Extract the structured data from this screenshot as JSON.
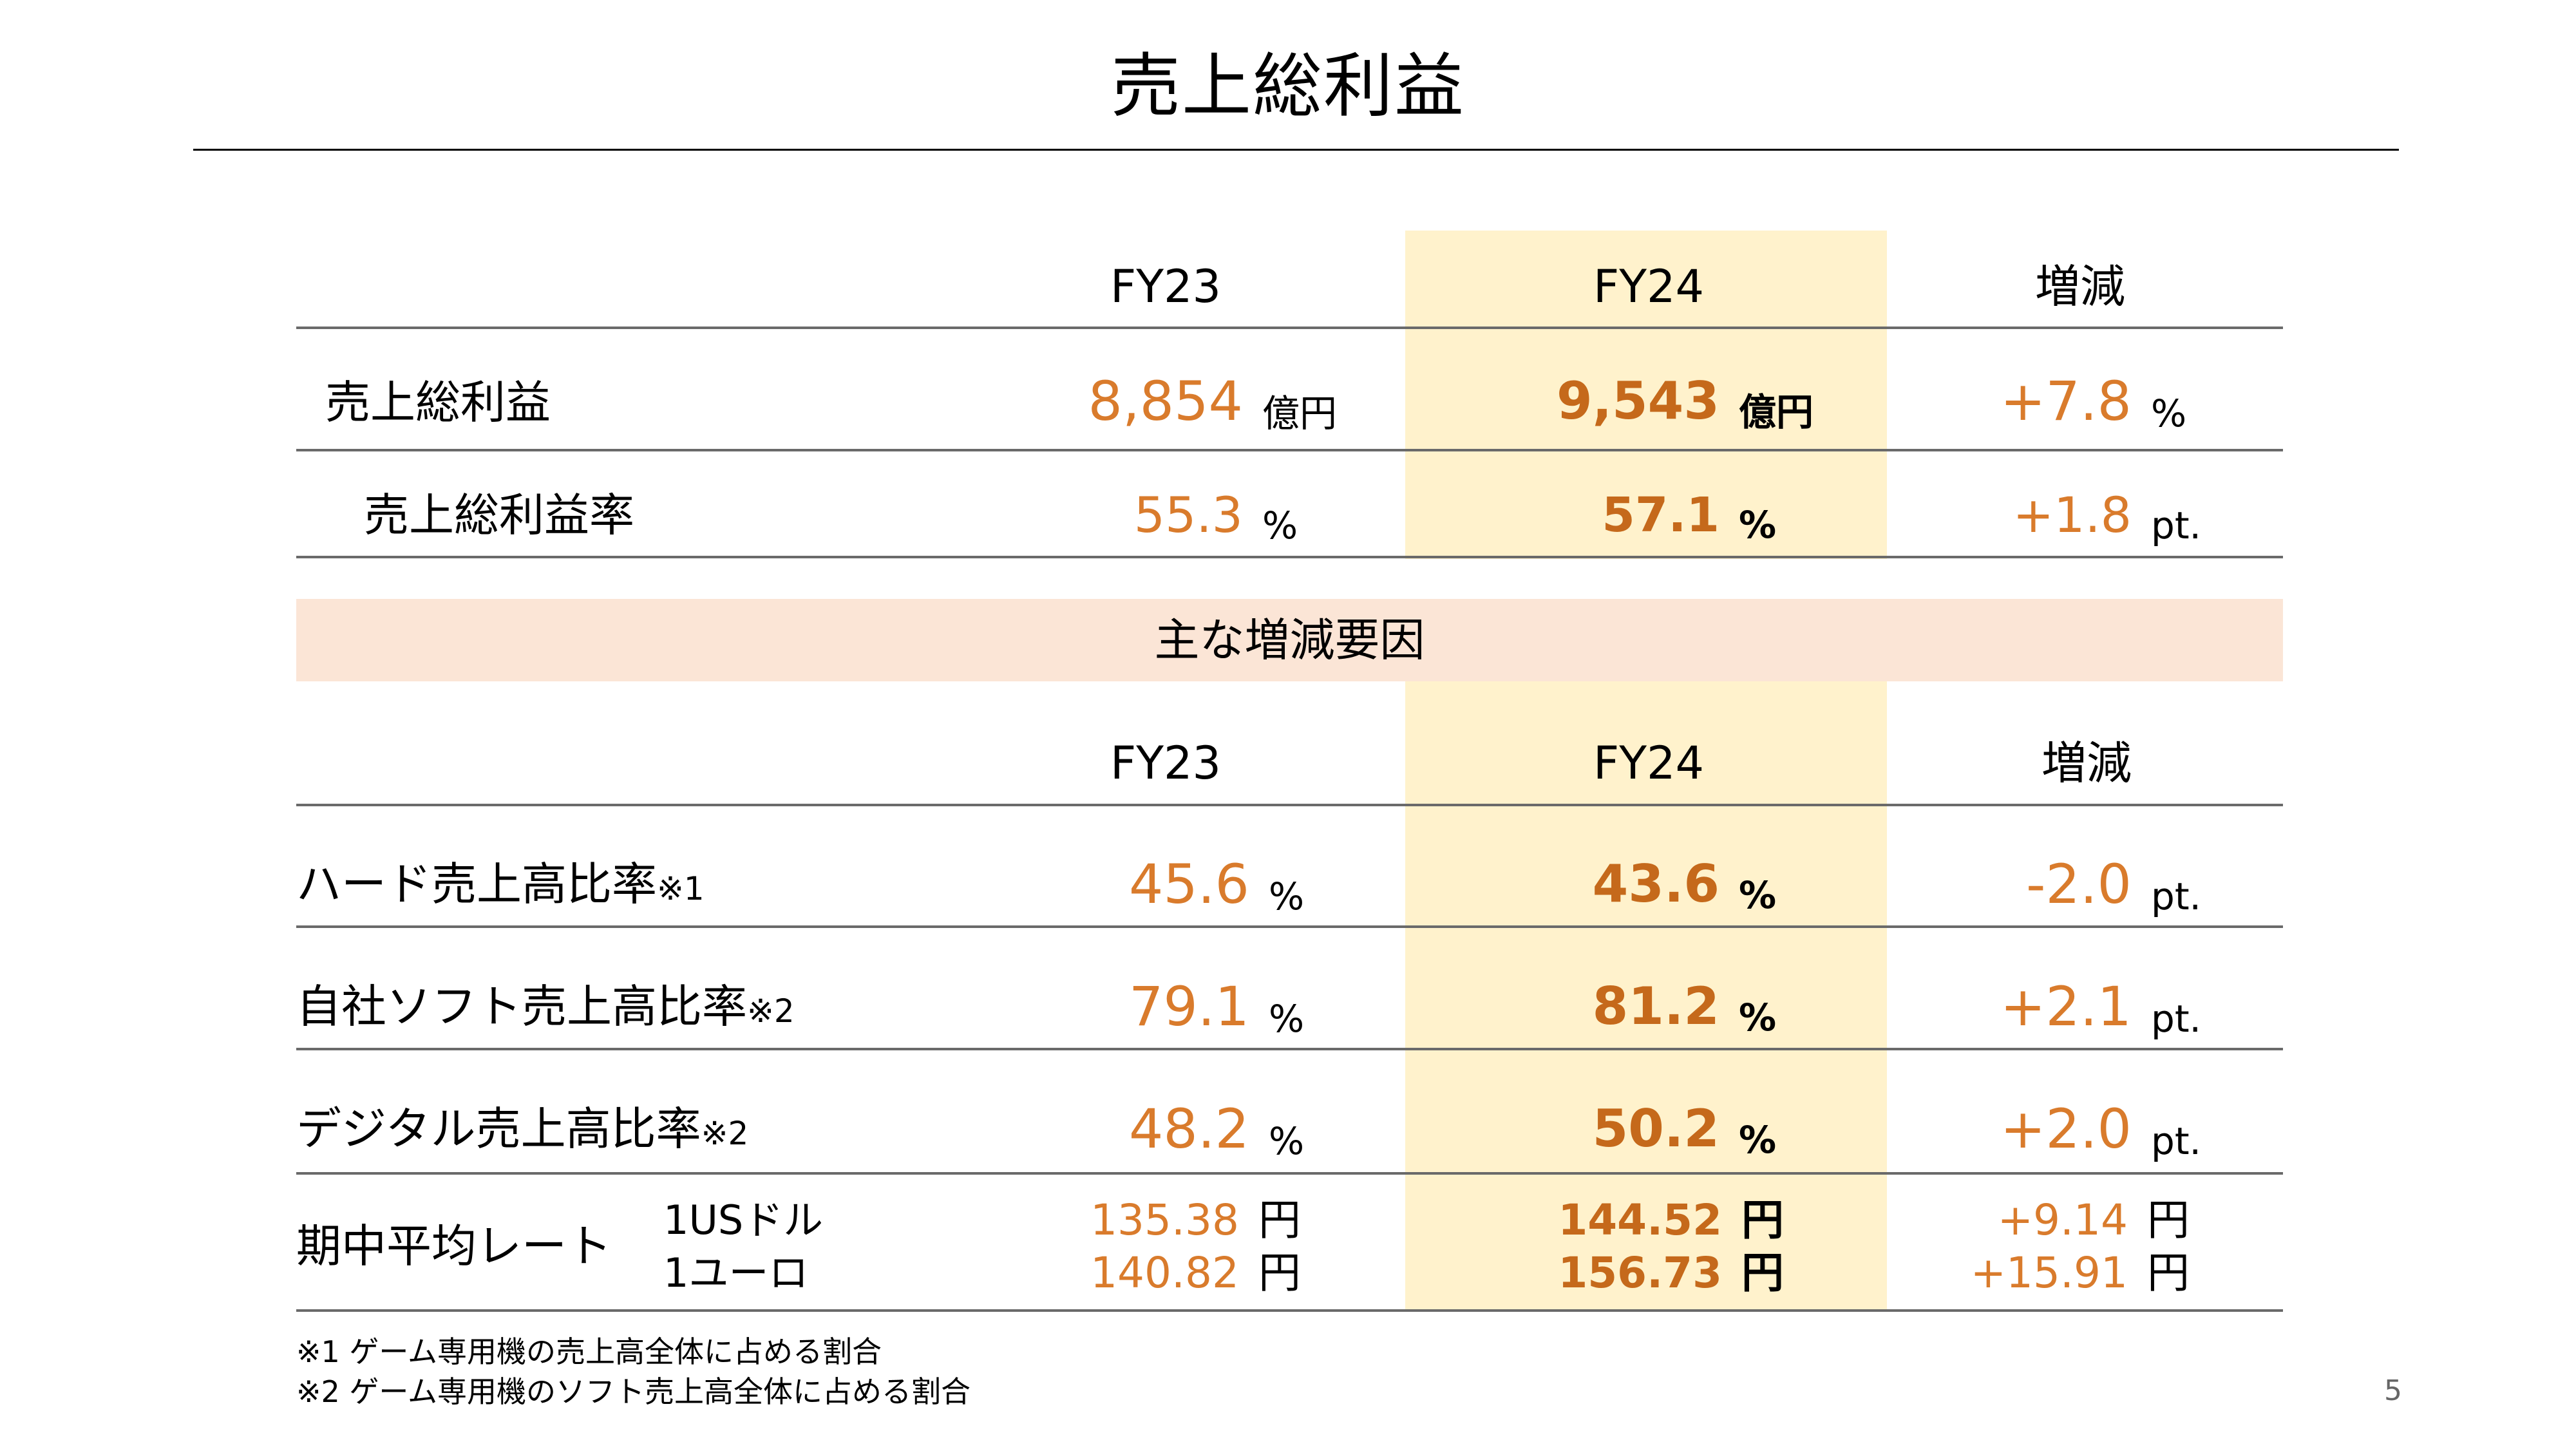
{
  "title": "売上総利益",
  "header1": {
    "fy23": "FY23",
    "fy24": "FY24",
    "change": "増減"
  },
  "header2": {
    "fy23": "FY23",
    "fy24": "FY24",
    "change": "増減"
  },
  "gross_profit": {
    "label": "売上総利益",
    "fy23": "8,854",
    "fy23_unit": "億円",
    "fy24": "9,543",
    "fy24_unit": "億円",
    "change": "+7.8",
    "change_unit": "%"
  },
  "gross_margin": {
    "label": "売上総利益率",
    "fy23": "55.3",
    "fy23_unit": "%",
    "fy24": "57.1",
    "fy24_unit": "%",
    "change": "+1.8",
    "change_unit": "pt."
  },
  "band_title": "主な増減要因",
  "factors": [
    {
      "label": "ハード売上高比率",
      "note": "※1",
      "fy23": "45.6",
      "fy23_unit": "%",
      "fy24": "43.6",
      "fy24_unit": "%",
      "change": "-2.0",
      "change_unit": "pt."
    },
    {
      "label": "自社ソフト売上高比率",
      "note": "※2",
      "fy23": "79.1",
      "fy23_unit": "%",
      "fy24": "81.2",
      "fy24_unit": "%",
      "change": "+2.1",
      "change_unit": "pt."
    },
    {
      "label": "デジタル売上高比率",
      "note": "※2",
      "fy23": "48.2",
      "fy23_unit": "%",
      "fy24": "50.2",
      "fy24_unit": "%",
      "change": "+2.0",
      "change_unit": "pt."
    }
  ],
  "rates": {
    "label": "期中平均レート",
    "usd_label": "1USドル",
    "eur_label": "1ユーロ",
    "usd": {
      "fy23": "135.38",
      "fy24": "144.52",
      "change": "+9.14",
      "unit": "円"
    },
    "eur": {
      "fy23": "140.82",
      "fy24": "156.73",
      "change": "+15.91",
      "unit": "円"
    }
  },
  "footnotes": [
    "※1 ゲーム専用機の売上高全体に占める割合",
    "※2 ゲーム専用機のソフト売上高全体に占める割合"
  ],
  "page_number": "5",
  "colors": {
    "accent": "#d97b2c",
    "accent_bold": "#c5691b",
    "fy24_bg": "#fff2cc",
    "band_bg": "#fbe5d6"
  }
}
